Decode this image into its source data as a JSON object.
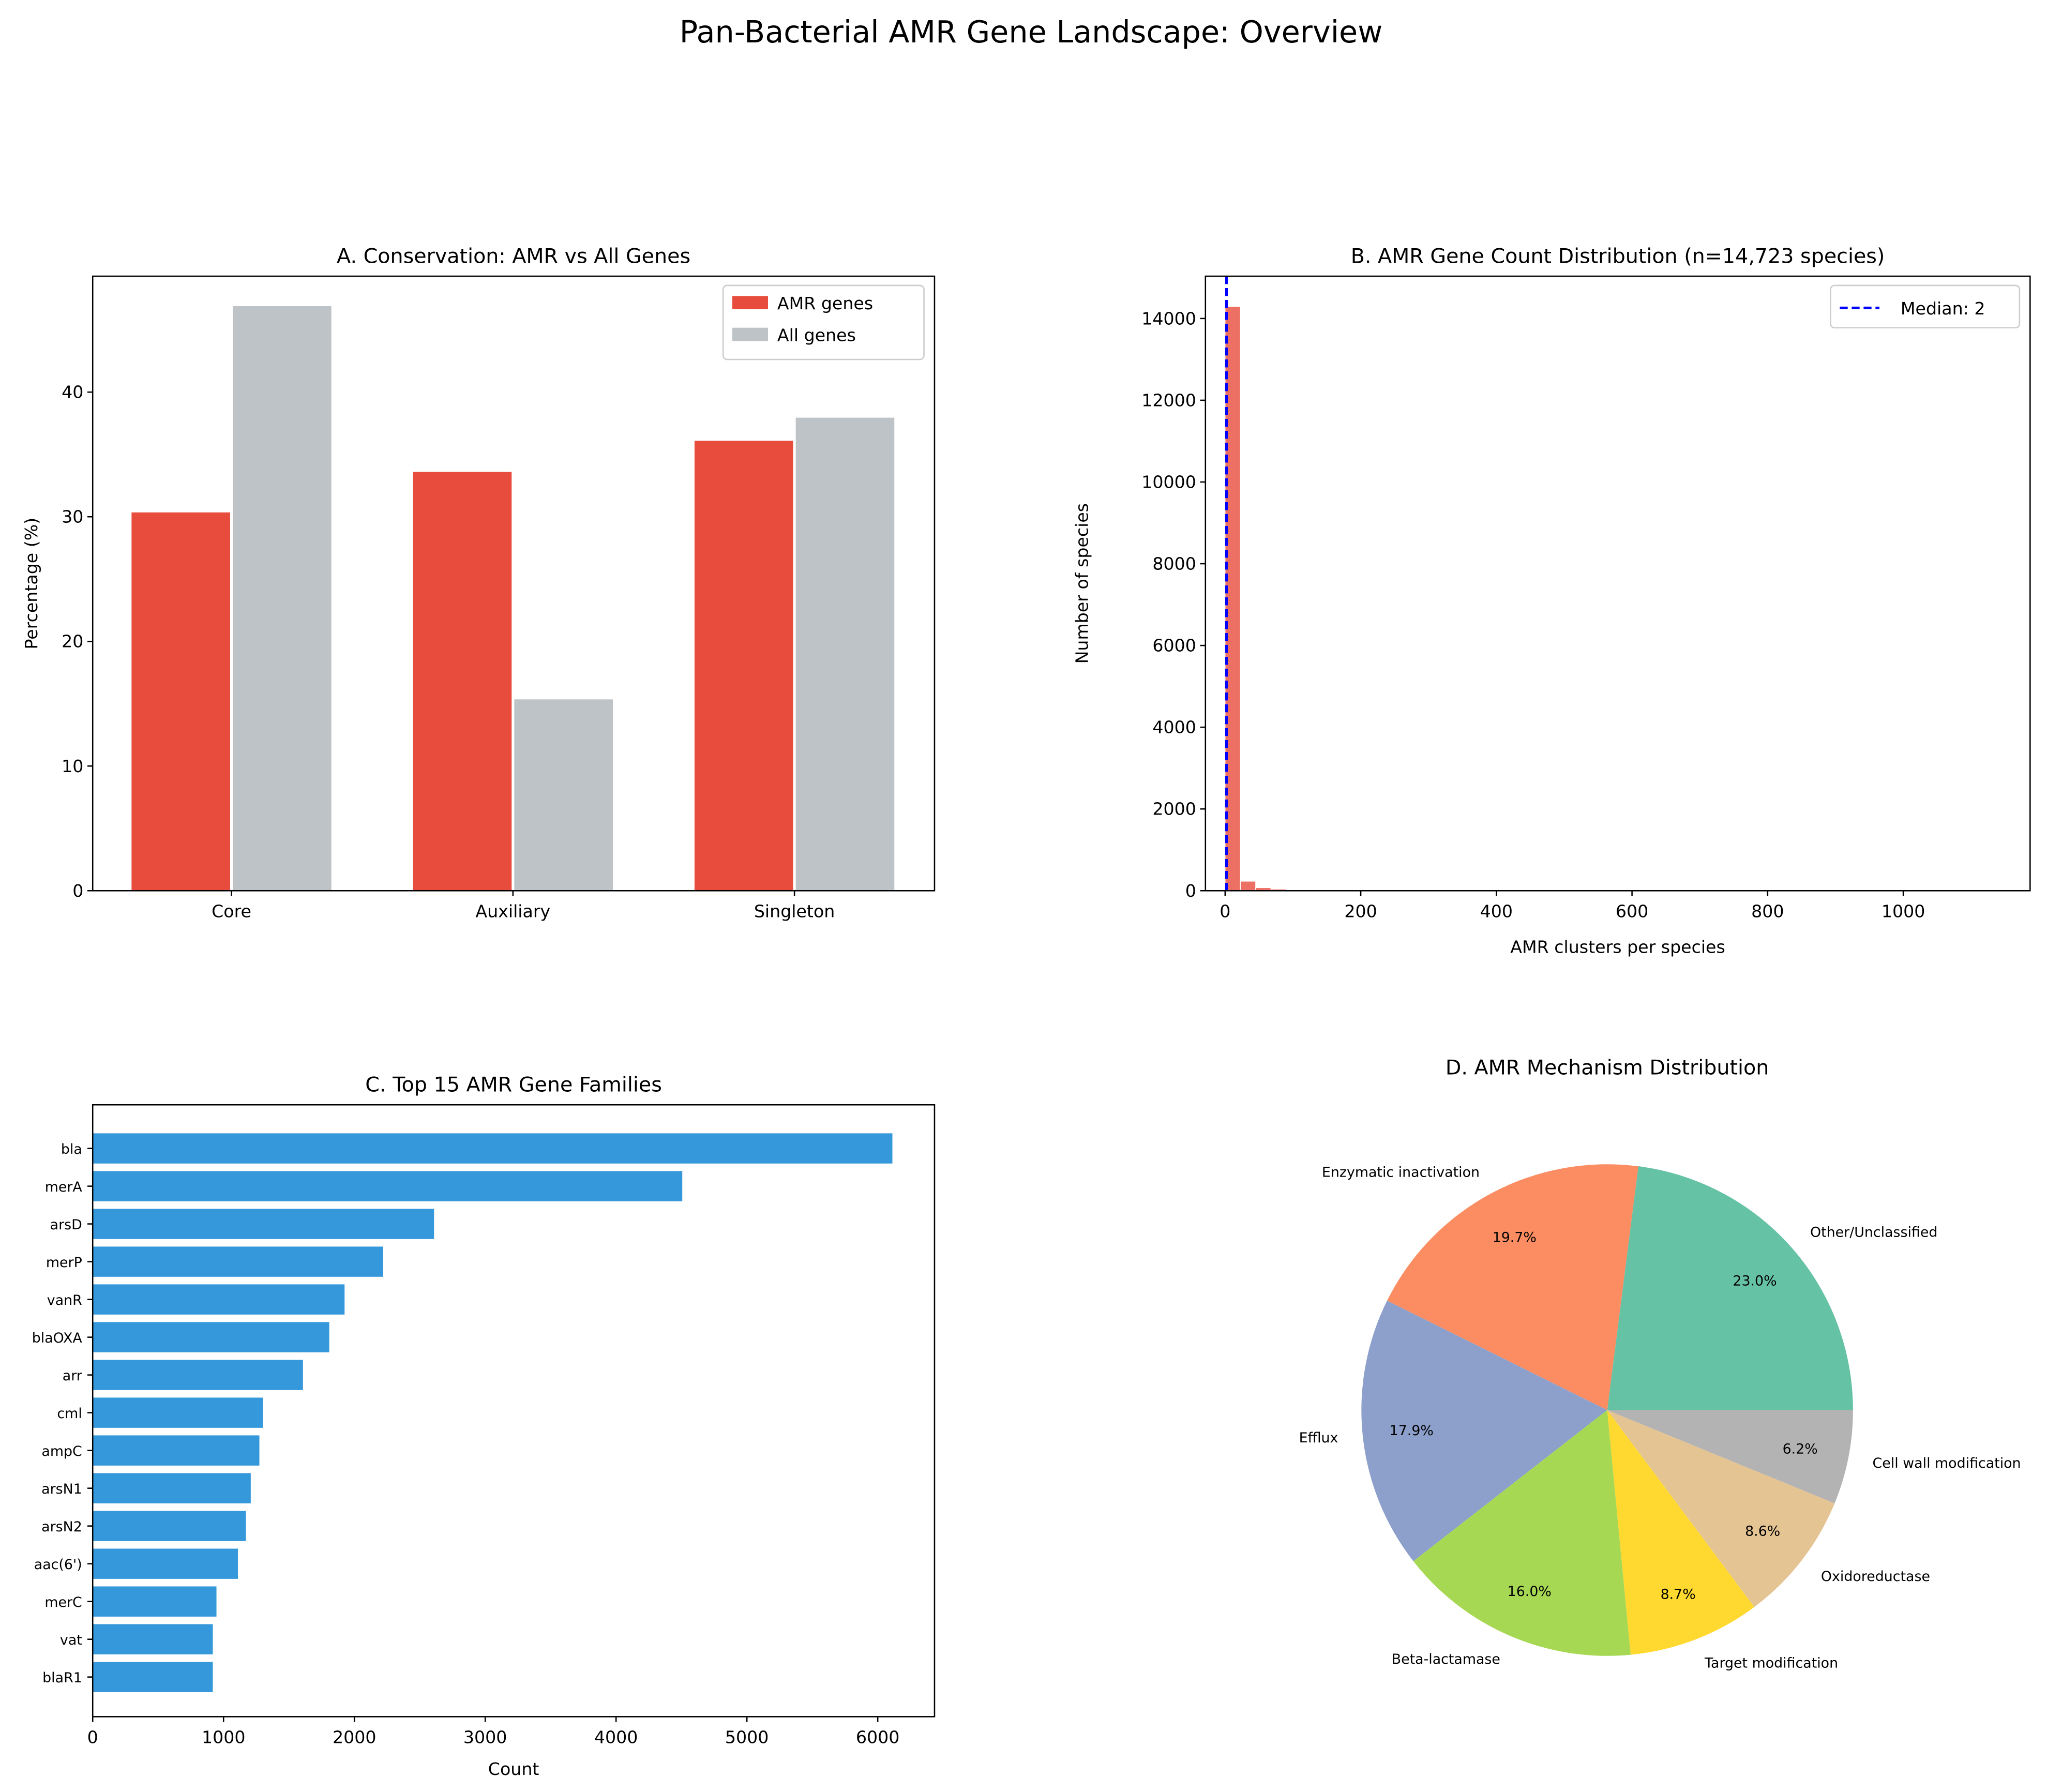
{
  "suptitle": "Pan-Bacterial AMR Gene Landscape: Overview",
  "chart_data": [
    {
      "type": "bar",
      "title": "A. Conservation: AMR vs All Genes",
      "xlabel": "",
      "ylabel": "Percentage (%)",
      "categories": [
        "Core",
        "Auxiliary",
        "Singleton"
      ],
      "series": [
        {
          "name": "AMR genes",
          "values": [
            30.35,
            33.6,
            36.1
          ],
          "color": "#e74c3c"
        },
        {
          "name": "All genes",
          "values": [
            46.9,
            15.35,
            37.95
          ],
          "color": "#bdc3c7"
        }
      ],
      "ylim": [
        0,
        49.3
      ],
      "yticks": [
        "0",
        "10",
        "20",
        "30",
        "40"
      ],
      "legend": "top-right"
    },
    {
      "type": "bar",
      "subtype": "histogram",
      "title": "B. AMR Gene Count Distribution (n=14,723 species)",
      "xlabel": "AMR clusters per species",
      "ylabel": "Number of species",
      "bin_start": 0,
      "bin_width": 22.5,
      "counts": [
        14294,
        232,
        74,
        38,
        20,
        12,
        9,
        7,
        5,
        4,
        3,
        3,
        2,
        2,
        2,
        1,
        1,
        1,
        1,
        1,
        1,
        1,
        0,
        1,
        0,
        0,
        1,
        0,
        0,
        0,
        1,
        0,
        0,
        0,
        0,
        1,
        0,
        0,
        0,
        0,
        0,
        0,
        1,
        0,
        0,
        0,
        0,
        0,
        0,
        1
      ],
      "color": "#e74c3c",
      "median": 2,
      "median_label": "Median: 2",
      "median_color": "#0000ff",
      "xlim": [
        -29,
        1187
      ],
      "ylim": [
        0,
        15035
      ],
      "xticks": [
        "0",
        "200",
        "400",
        "600",
        "800",
        "1000"
      ],
      "yticks": [
        "0",
        "2000",
        "4000",
        "6000",
        "8000",
        "10000",
        "12000",
        "14000"
      ],
      "legend": "top-right"
    },
    {
      "type": "bar",
      "orientation": "horizontal",
      "title": "C. Top 15 AMR Gene Families",
      "xlabel": "Count",
      "ylabel": "",
      "categories": [
        "bla",
        "merA",
        "arsD",
        "merP",
        "vanR",
        "blaOXA",
        "arr",
        "cml",
        "ampC",
        "arsN1",
        "arsN2",
        "aac(6')",
        "merC",
        "vat",
        "blaR1"
      ],
      "values": [
        6112,
        4506,
        2609,
        2220,
        1925,
        1808,
        1607,
        1302,
        1274,
        1208,
        1171,
        1110,
        946,
        918,
        918
      ],
      "color": "#3498db",
      "xlim": [
        0,
        6434
      ],
      "xticks": [
        "0",
        "1000",
        "2000",
        "3000",
        "4000",
        "5000",
        "6000"
      ]
    },
    {
      "type": "pie",
      "title": "D. AMR Mechanism Distribution",
      "labels": [
        "Other/Unclassified",
        "Enzymatic inactivation",
        "Efflux",
        "Beta-lactamase",
        "Target modification",
        "Oxidoreductase",
        "Cell wall modification"
      ],
      "values": [
        23.0,
        19.7,
        17.9,
        16.0,
        8.7,
        8.6,
        6.2
      ],
      "pct_labels": [
        "23.0%",
        "19.7%",
        "17.9%",
        "16.0%",
        "8.7%",
        "8.6%",
        "6.2%"
      ],
      "colors": [
        "#66c2a5",
        "#fc8d62",
        "#8da0cb",
        "#a6d854",
        "#ffd92f",
        "#e5c494",
        "#b3b3b3"
      ]
    }
  ]
}
